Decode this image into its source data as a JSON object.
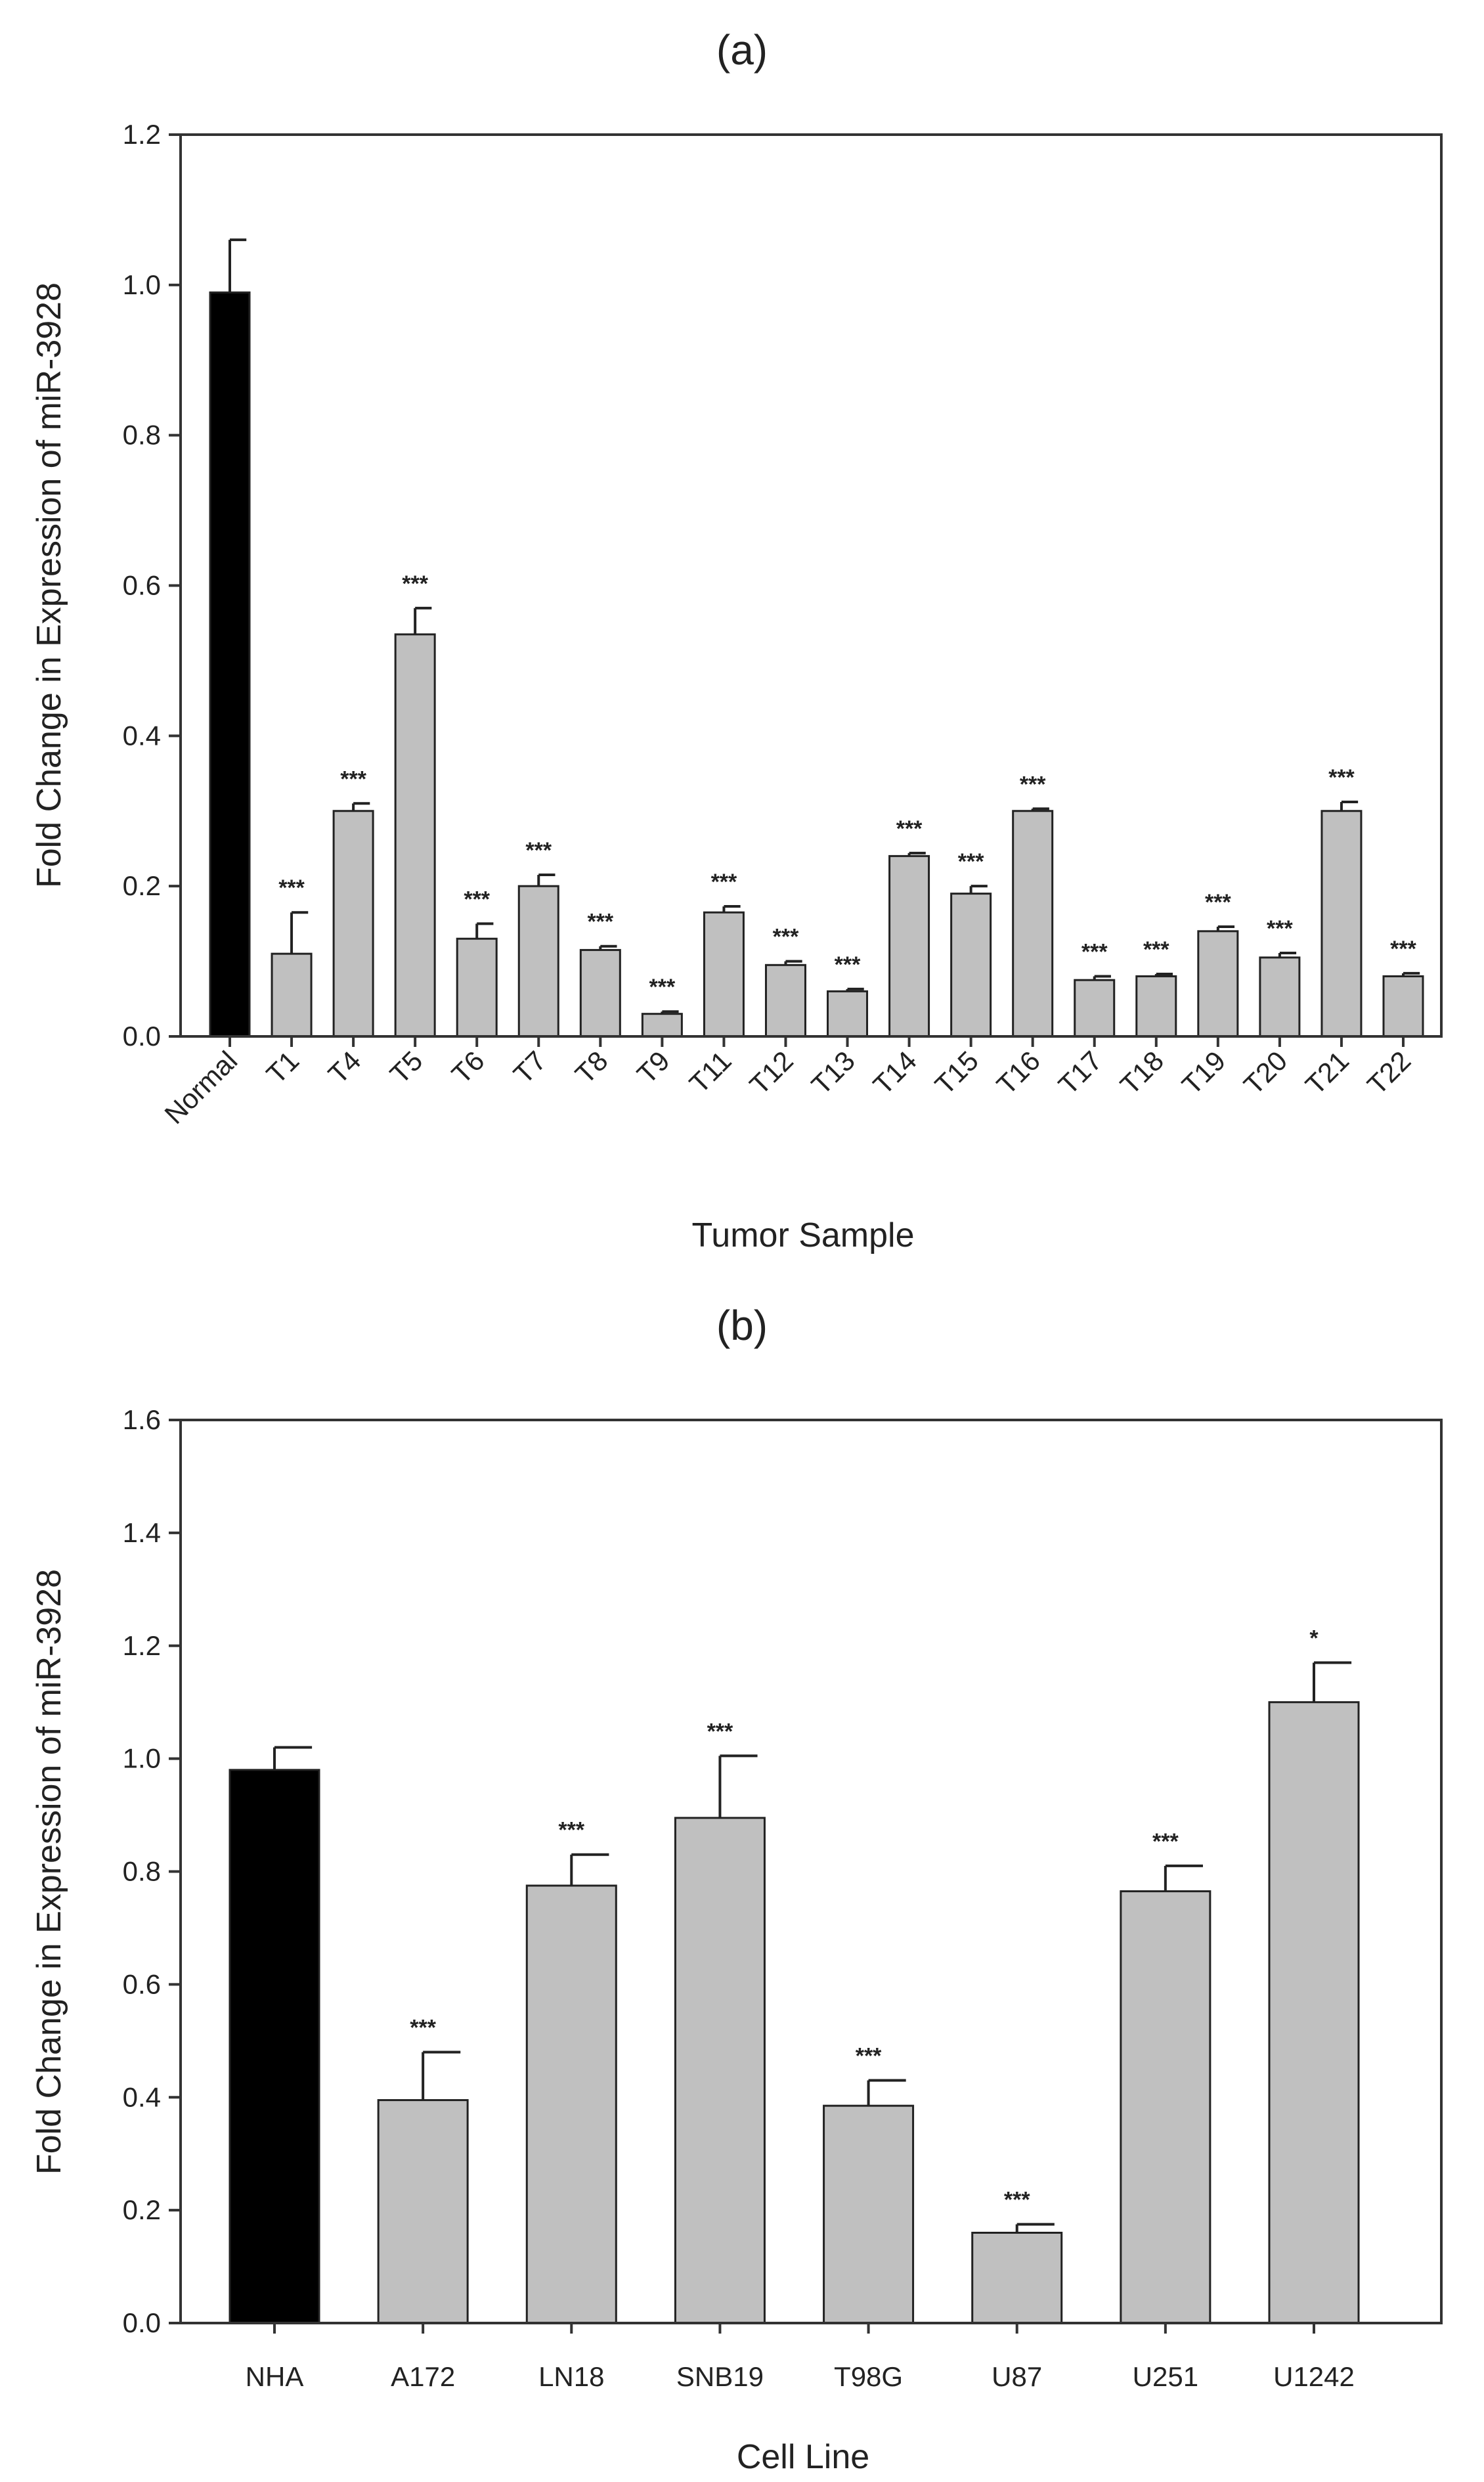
{
  "chart_data": [
    {
      "type": "bar",
      "panel_label": "(a)",
      "title": "",
      "xlabel": "Tumor Sample",
      "ylabel": "Fold Change in Expression of miR-3928",
      "ylim": [
        0,
        1.2
      ],
      "yticks": [
        "0.0",
        "0.2",
        "0.4",
        "0.6",
        "0.8",
        "1.0",
        "1.2"
      ],
      "grid": false,
      "categories": [
        "Normal",
        "T1",
        "T4",
        "T5",
        "T6",
        "T7",
        "T8",
        "T9",
        "T11",
        "T12",
        "T13",
        "T14",
        "T15",
        "T16",
        "T17",
        "T18",
        "T19",
        "T20",
        "T21",
        "T22"
      ],
      "values": [
        0.99,
        0.11,
        0.3,
        0.535,
        0.13,
        0.2,
        0.115,
        0.03,
        0.165,
        0.095,
        0.06,
        0.24,
        0.19,
        0.3,
        0.075,
        0.08,
        0.14,
        0.105,
        0.3,
        0.08
      ],
      "errors": [
        0.07,
        0.055,
        0.01,
        0.035,
        0.02,
        0.015,
        0.005,
        0.003,
        0.008,
        0.005,
        0.003,
        0.004,
        0.01,
        0.003,
        0.005,
        0.003,
        0.006,
        0.006,
        0.012,
        0.004
      ],
      "significance": [
        "",
        "***",
        "***",
        "***",
        "***",
        "***",
        "***",
        "***",
        "***",
        "***",
        "***",
        "***",
        "***",
        "***",
        "***",
        "***",
        "***",
        "***",
        "***",
        "***"
      ],
      "bar_colors": [
        "#000000",
        "#c0c0c0",
        "#c0c0c0",
        "#c0c0c0",
        "#c0c0c0",
        "#c0c0c0",
        "#c0c0c0",
        "#c0c0c0",
        "#c0c0c0",
        "#c0c0c0",
        "#c0c0c0",
        "#c0c0c0",
        "#c0c0c0",
        "#c0c0c0",
        "#c0c0c0",
        "#c0c0c0",
        "#c0c0c0",
        "#c0c0c0",
        "#c0c0c0",
        "#c0c0c0"
      ]
    },
    {
      "type": "bar",
      "panel_label": "(b)",
      "title": "",
      "xlabel": "Cell Line",
      "ylabel": "Fold Change in Expression of miR-3928",
      "ylim": [
        0,
        1.6
      ],
      "yticks": [
        "0.0",
        "0.2",
        "0.4",
        "0.6",
        "0.8",
        "1.0",
        "1.2",
        "1.4",
        "1.6"
      ],
      "grid": false,
      "categories": [
        "NHA",
        "A172",
        "LN18",
        "SNB19",
        "T98G",
        "U87",
        "U251",
        "U1242"
      ],
      "values": [
        0.98,
        0.395,
        0.775,
        0.895,
        0.385,
        0.16,
        0.765,
        1.1
      ],
      "errors": [
        0.04,
        0.085,
        0.055,
        0.11,
        0.045,
        0.015,
        0.045,
        0.07
      ],
      "significance": [
        "",
        "***",
        "***",
        "***",
        "***",
        "***",
        "***",
        "*"
      ],
      "bar_colors": [
        "#000000",
        "#c0c0c0",
        "#c0c0c0",
        "#c0c0c0",
        "#c0c0c0",
        "#c0c0c0",
        "#c0c0c0",
        "#c0c0c0"
      ]
    }
  ]
}
